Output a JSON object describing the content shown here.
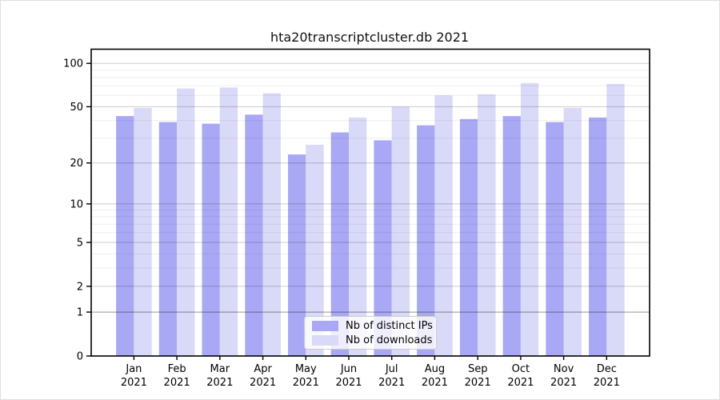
{
  "chart_data": {
    "type": "bar",
    "title": "hta20transcriptcluster.db 2021",
    "categories": [
      "Jan",
      "Feb",
      "Mar",
      "Apr",
      "May",
      "Jun",
      "Jul",
      "Aug",
      "Sep",
      "Oct",
      "Nov",
      "Dec"
    ],
    "year": "2021",
    "series": [
      {
        "name": "Nb of distinct IPs",
        "color": "#a8a8f5",
        "values": [
          43,
          39,
          38,
          44,
          23,
          33,
          29,
          37,
          41,
          43,
          39,
          42
        ]
      },
      {
        "name": "Nb of downloads",
        "color": "#d9d9f8",
        "values": [
          49,
          67,
          68,
          62,
          27,
          42,
          50,
          60,
          61,
          73,
          49,
          72
        ]
      }
    ],
    "y_scale": "log1p",
    "ylim": [
      0,
      125
    ],
    "y_ticks": [
      100,
      50,
      20,
      10,
      5,
      2,
      1,
      0
    ],
    "y_minor_ticks": [
      3,
      4,
      6,
      7,
      8,
      9,
      30,
      40,
      60,
      70,
      80,
      90
    ],
    "grid": "horizontal",
    "legend_position": "bottom-center"
  },
  "colors": {
    "axis_frame": "#000000",
    "tick_text": "#000000",
    "major_grid": "rgba(0,0,0,0.20)",
    "unit_grid": "rgba(0,0,0,0.42)",
    "minor_grid": "rgba(0,0,0,0.065)",
    "background": "#ffffff"
  }
}
